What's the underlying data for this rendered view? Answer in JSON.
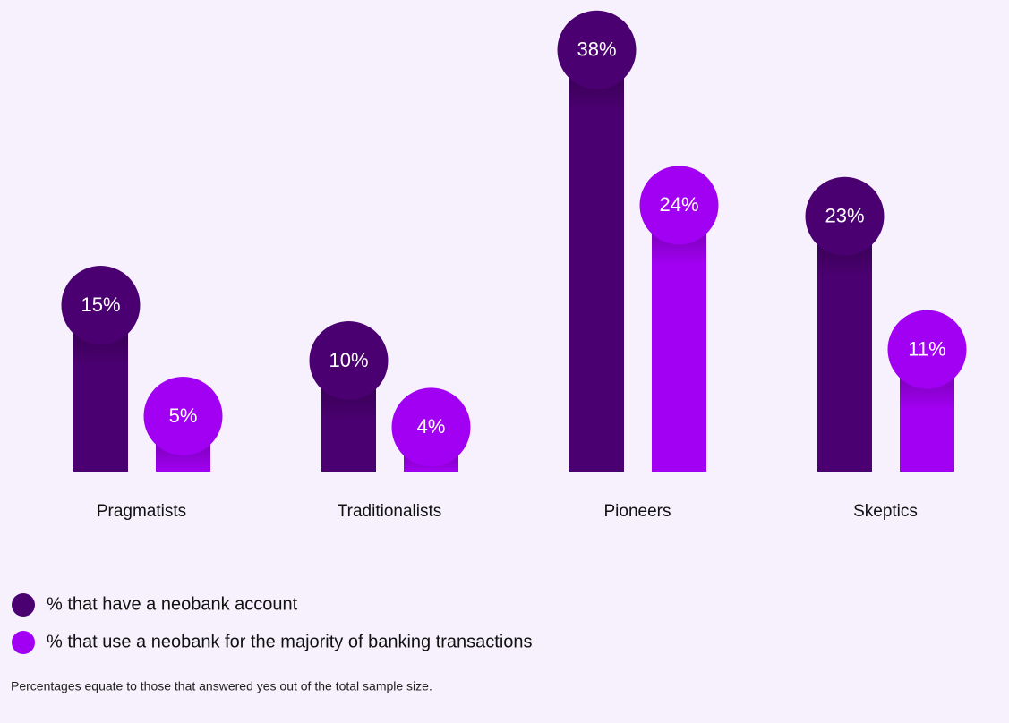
{
  "chart_data": {
    "type": "bar",
    "categories": [
      "Pragmatists",
      "Traditionalists",
      "Pioneers",
      "Skeptics"
    ],
    "series": [
      {
        "name": "% that have a neobank account",
        "color": "#4a0070",
        "values": [
          15,
          10,
          38,
          23
        ],
        "value_labels": [
          "15%",
          "10%",
          "38%",
          "23%"
        ]
      },
      {
        "name": "% that use a neobank for the majority of banking transactions",
        "color": "#a100f2",
        "values": [
          5,
          4,
          24,
          11
        ],
        "value_labels": [
          "5%",
          "4%",
          "24%",
          "11%"
        ]
      }
    ],
    "note": "Percentages equate to those that answered yes out of the total sample size."
  }
}
